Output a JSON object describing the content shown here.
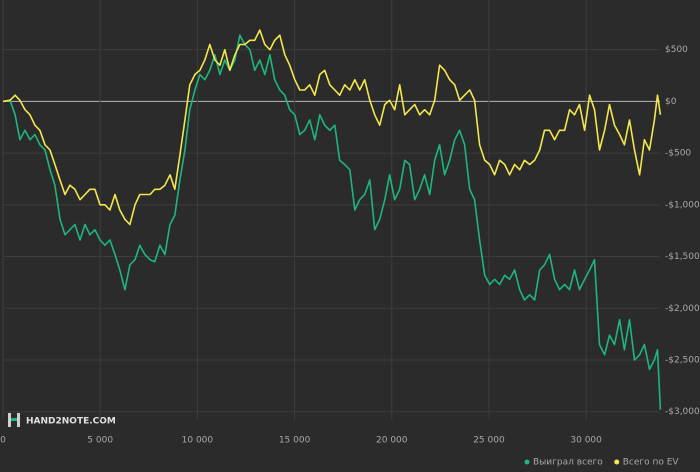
{
  "chart_data": {
    "type": "line",
    "watermark": "HAND2NOTE.COM",
    "x": [
      0,
      360,
      620,
      870,
      1130,
      1390,
      1640,
      1900,
      2160,
      2420,
      2670,
      2930,
      3190,
      3440,
      3700,
      3960,
      4220,
      4470,
      4730,
      4990,
      5240,
      5500,
      5760,
      6010,
      6270,
      6530,
      6790,
      7040,
      7300,
      7560,
      7810,
      8070,
      8330,
      8590,
      8840,
      9100,
      9360,
      9610,
      9870,
      10130,
      10380,
      10640,
      10900,
      11160,
      11410,
      11670,
      11930,
      12180,
      12440,
      12700,
      12950,
      13210,
      13470,
      13730,
      13980,
      14240,
      14500,
      14750,
      15010,
      15270,
      15520,
      15780,
      16040,
      16300,
      16550,
      16810,
      17070,
      17320,
      17580,
      17840,
      18100,
      18350,
      18610,
      18870,
      19120,
      19380,
      19640,
      19890,
      20150,
      20410,
      20670,
      20920,
      21180,
      21440,
      21690,
      21950,
      22210,
      22460,
      22720,
      22980,
      23240,
      23490,
      23750,
      24010,
      24260,
      24520,
      24780,
      25040,
      25290,
      25550,
      25810,
      26060,
      26320,
      26580,
      26830,
      27090,
      27350,
      27610,
      27860,
      28120,
      28380,
      28630,
      28890,
      29150,
      29400,
      29660,
      29920,
      30180,
      30430,
      30690,
      30950,
      31200,
      31460,
      31720,
      31970,
      32230,
      32490,
      32750,
      33000,
      33260,
      33510,
      33670,
      33820
    ],
    "series": [
      {
        "name": "Выиграл всего",
        "color": "#1db77e",
        "values": [
          0,
          10,
          -130,
          -370,
          -280,
          -370,
          -320,
          -420,
          -470,
          -660,
          -810,
          -1140,
          -1290,
          -1240,
          -1190,
          -1340,
          -1190,
          -1290,
          -1240,
          -1340,
          -1390,
          -1340,
          -1480,
          -1630,
          -1820,
          -1580,
          -1530,
          -1390,
          -1480,
          -1530,
          -1550,
          -1390,
          -1480,
          -1190,
          -1100,
          -760,
          -470,
          -80,
          110,
          260,
          210,
          300,
          450,
          260,
          400,
          300,
          400,
          640,
          550,
          500,
          300,
          400,
          260,
          450,
          210,
          110,
          60,
          -80,
          -130,
          -320,
          -280,
          -180,
          -370,
          -130,
          -230,
          -280,
          -230,
          -570,
          -610,
          -660,
          -1050,
          -950,
          -900,
          -760,
          -1240,
          -1140,
          -950,
          -710,
          -950,
          -850,
          -570,
          -610,
          -950,
          -850,
          -710,
          -900,
          -570,
          -420,
          -710,
          -570,
          -370,
          -280,
          -420,
          -850,
          -950,
          -1340,
          -1680,
          -1770,
          -1720,
          -1770,
          -1680,
          -1720,
          -1630,
          -1820,
          -1920,
          -1870,
          -1920,
          -1630,
          -1580,
          -1480,
          -1720,
          -1820,
          -1770,
          -1820,
          -1630,
          -1820,
          -1720,
          -1630,
          -1530,
          -2350,
          -2450,
          -2260,
          -2350,
          -2110,
          -2400,
          -2110,
          -2500,
          -2450,
          -2350,
          -2590,
          -2500,
          -2400,
          -2980
        ]
      },
      {
        "name": "Всего по EV",
        "color": "#f2e84b",
        "values": [
          0,
          10,
          60,
          10,
          -80,
          -130,
          -230,
          -280,
          -420,
          -470,
          -610,
          -760,
          -900,
          -810,
          -850,
          -950,
          -900,
          -850,
          -850,
          -1000,
          -1000,
          -1050,
          -900,
          -1050,
          -1140,
          -1190,
          -1000,
          -900,
          -900,
          -900,
          -850,
          -850,
          -810,
          -710,
          -850,
          -520,
          -180,
          160,
          260,
          300,
          400,
          550,
          400,
          350,
          500,
          300,
          450,
          550,
          550,
          590,
          590,
          690,
          550,
          500,
          590,
          640,
          450,
          350,
          210,
          110,
          110,
          160,
          60,
          260,
          300,
          160,
          110,
          60,
          160,
          110,
          210,
          110,
          210,
          10,
          -130,
          -230,
          -30,
          10,
          -80,
          160,
          -130,
          -80,
          -30,
          -130,
          -80,
          -130,
          10,
          350,
          300,
          210,
          160,
          10,
          60,
          110,
          10,
          -420,
          -570,
          -610,
          -710,
          -570,
          -610,
          -710,
          -610,
          -660,
          -570,
          -610,
          -570,
          -470,
          -280,
          -280,
          -370,
          -280,
          -280,
          -80,
          -130,
          -30,
          -280,
          60,
          -80,
          -470,
          -280,
          -30,
          -230,
          -320,
          -420,
          -180,
          -470,
          -710,
          -370,
          -470,
          -180,
          60,
          -130
        ]
      }
    ],
    "xlim": [
      0,
      33800
    ],
    "xticks": [
      0,
      {
        "value": 5000,
        "label": "5 000"
      },
      {
        "value": 10000,
        "label": "10 000"
      },
      {
        "value": 15000,
        "label": "15 000"
      },
      {
        "value": 20000,
        "label": "20 000"
      },
      {
        "value": 25000,
        "label": "25 000"
      },
      {
        "value": 30000,
        "label": "30 000"
      }
    ],
    "ylim": [
      -3080,
      980
    ],
    "yticks": [
      {
        "value": 500,
        "label": "$500"
      },
      {
        "value": 0,
        "label": "$0"
      },
      {
        "value": -500,
        "label": "-$500"
      },
      {
        "value": -1000,
        "label": "-$1,000"
      },
      {
        "value": -1500,
        "label": "-$1,500"
      },
      {
        "value": -2000,
        "label": "-$2,000"
      },
      {
        "value": -2500,
        "label": "-$2,500"
      },
      {
        "value": -3000,
        "label": "-$3,000"
      }
    ],
    "grid": true,
    "legend": "bottom-right"
  }
}
